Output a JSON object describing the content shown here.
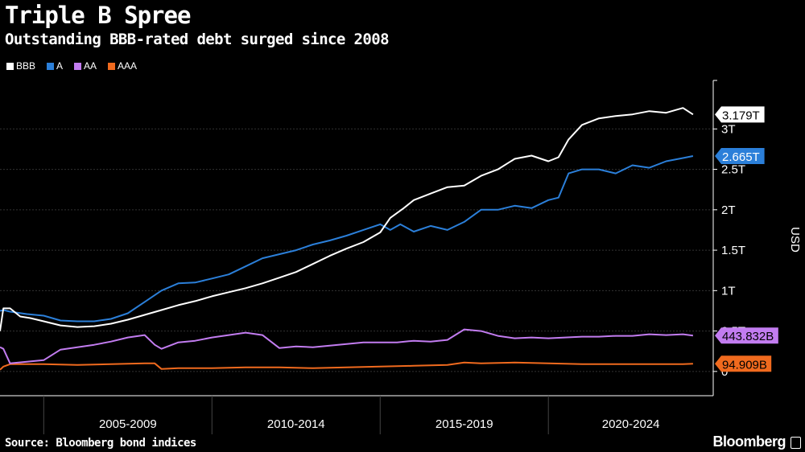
{
  "title": "Triple B Spree",
  "subtitle": "Outstanding BBB-rated debt surged since 2008",
  "source": "Source: Bloomberg bond indices",
  "brand": "Bloomberg",
  "legend": [
    {
      "label": "BBB",
      "color": "#ffffff"
    },
    {
      "label": "A",
      "color": "#2b7fd9"
    },
    {
      "label": "AA",
      "color": "#c27cf0"
    },
    {
      "label": "AAA",
      "color": "#f06a1e"
    }
  ],
  "chart_data": {
    "type": "line",
    "ylabel": "USD",
    "xlabel": "",
    "x_period_labels": [
      "2005-2009",
      "2010-2014",
      "2015-2019",
      "2020-2024"
    ],
    "y_tick_labels": [
      "0",
      "0.5T",
      "1T",
      "1.5T",
      "2T",
      "2.5T",
      "3T"
    ],
    "y_ticks": [
      0,
      0.5,
      1,
      1.5,
      2,
      2.5,
      3
    ],
    "xlim": [
      2003.7,
      2024.9
    ],
    "ylim": [
      -0.3,
      3.6
    ],
    "series": [
      {
        "name": "BBB",
        "color": "#ffffff",
        "end_label": "3.179T",
        "end_value": 3.179,
        "x": [
          2003.7,
          2003.8,
          2004.0,
          2004.3,
          2004.6,
          2005.0,
          2005.5,
          2006.0,
          2006.5,
          2007.0,
          2007.5,
          2008.0,
          2008.5,
          2009.0,
          2009.5,
          2010.0,
          2010.5,
          2011.0,
          2011.5,
          2012.0,
          2012.5,
          2013.0,
          2013.5,
          2014.0,
          2014.5,
          2015.0,
          2015.3,
          2015.7,
          2016.0,
          2016.5,
          2017.0,
          2017.5,
          2018.0,
          2018.5,
          2019.0,
          2019.5,
          2020.0,
          2020.3,
          2020.6,
          2021.0,
          2021.5,
          2022.0,
          2022.5,
          2023.0,
          2023.5,
          2024.0,
          2024.3
        ],
        "values": [
          0.5,
          0.78,
          0.78,
          0.68,
          0.66,
          0.62,
          0.57,
          0.55,
          0.56,
          0.59,
          0.64,
          0.7,
          0.76,
          0.82,
          0.87,
          0.93,
          0.98,
          1.03,
          1.09,
          1.16,
          1.23,
          1.33,
          1.43,
          1.52,
          1.6,
          1.72,
          1.9,
          2.02,
          2.12,
          2.2,
          2.28,
          2.3,
          2.42,
          2.5,
          2.63,
          2.67,
          2.6,
          2.65,
          2.87,
          3.05,
          3.13,
          3.16,
          3.18,
          3.22,
          3.2,
          3.26,
          3.179
        ]
      },
      {
        "name": "A",
        "color": "#2b7fd9",
        "end_label": "2.665T",
        "end_value": 2.665,
        "x": [
          2003.7,
          2003.8,
          2004.0,
          2004.5,
          2005.0,
          2005.5,
          2006.0,
          2006.5,
          2007.0,
          2007.5,
          2008.0,
          2008.5,
          2009.0,
          2009.5,
          2010.0,
          2010.5,
          2011.0,
          2011.5,
          2012.0,
          2012.5,
          2013.0,
          2013.5,
          2014.0,
          2014.5,
          2015.0,
          2015.3,
          2015.6,
          2016.0,
          2016.5,
          2017.0,
          2017.5,
          2018.0,
          2018.5,
          2019.0,
          2019.5,
          2020.0,
          2020.3,
          2020.6,
          2021.0,
          2021.5,
          2022.0,
          2022.5,
          2023.0,
          2023.5,
          2024.0,
          2024.3
        ],
        "values": [
          0.75,
          0.76,
          0.74,
          0.71,
          0.69,
          0.63,
          0.62,
          0.62,
          0.65,
          0.72,
          0.86,
          1.0,
          1.09,
          1.1,
          1.15,
          1.2,
          1.3,
          1.4,
          1.45,
          1.5,
          1.57,
          1.62,
          1.68,
          1.75,
          1.82,
          1.75,
          1.82,
          1.73,
          1.8,
          1.75,
          1.85,
          2.0,
          2.0,
          2.05,
          2.02,
          2.12,
          2.15,
          2.45,
          2.5,
          2.5,
          2.45,
          2.55,
          2.52,
          2.6,
          2.64,
          2.665
        ]
      },
      {
        "name": "AA",
        "color": "#c27cf0",
        "end_label": "443.832B",
        "end_value": 0.443832,
        "x": [
          2003.7,
          2003.8,
          2004.0,
          2004.5,
          2005.0,
          2005.5,
          2006.0,
          2006.5,
          2007.0,
          2007.5,
          2008.0,
          2008.3,
          2008.5,
          2009.0,
          2009.5,
          2010.0,
          2010.5,
          2011.0,
          2011.5,
          2012.0,
          2012.5,
          2013.0,
          2013.5,
          2014.0,
          2014.5,
          2015.0,
          2015.5,
          2016.0,
          2016.5,
          2017.0,
          2017.5,
          2018.0,
          2018.5,
          2019.0,
          2019.5,
          2020.0,
          2020.5,
          2021.0,
          2021.5,
          2022.0,
          2022.5,
          2023.0,
          2023.5,
          2024.0,
          2024.3
        ],
        "values": [
          0.3,
          0.28,
          0.1,
          0.12,
          0.14,
          0.27,
          0.3,
          0.33,
          0.37,
          0.42,
          0.45,
          0.33,
          0.28,
          0.36,
          0.38,
          0.42,
          0.45,
          0.48,
          0.45,
          0.29,
          0.31,
          0.3,
          0.32,
          0.34,
          0.36,
          0.36,
          0.36,
          0.38,
          0.37,
          0.39,
          0.52,
          0.5,
          0.44,
          0.41,
          0.42,
          0.41,
          0.42,
          0.43,
          0.43,
          0.44,
          0.44,
          0.46,
          0.45,
          0.46,
          0.444
        ]
      },
      {
        "name": "AAA",
        "color": "#f06a1e",
        "end_label": "94.909B",
        "end_value": 0.094909,
        "x": [
          2003.7,
          2003.8,
          2004.0,
          2005.0,
          2006.0,
          2007.0,
          2008.0,
          2008.3,
          2008.5,
          2009.0,
          2010.0,
          2011.0,
          2012.0,
          2013.0,
          2014.0,
          2015.0,
          2016.0,
          2017.0,
          2017.5,
          2018.0,
          2019.0,
          2020.0,
          2021.0,
          2022.0,
          2023.0,
          2024.0,
          2024.3
        ],
        "values": [
          0.02,
          0.06,
          0.09,
          0.09,
          0.08,
          0.09,
          0.1,
          0.1,
          0.03,
          0.04,
          0.04,
          0.05,
          0.05,
          0.04,
          0.05,
          0.06,
          0.07,
          0.08,
          0.11,
          0.1,
          0.11,
          0.1,
          0.09,
          0.09,
          0.09,
          0.09,
          0.095
        ]
      }
    ]
  }
}
